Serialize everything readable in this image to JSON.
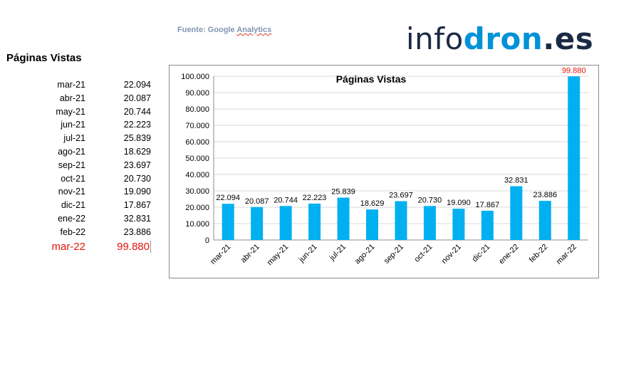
{
  "header": {
    "source_prefix": "Fuente: Google ",
    "source_name": "Analytics",
    "logo_part1": "info",
    "logo_part2": "dron",
    "logo_part3": ".es"
  },
  "table": {
    "title": "Páginas Vistas",
    "rows": [
      {
        "month": "mar-21",
        "value": "22.094"
      },
      {
        "month": "abr-21",
        "value": "20.087"
      },
      {
        "month": "may-21",
        "value": "20.744"
      },
      {
        "month": "jun-21",
        "value": "22.223"
      },
      {
        "month": "jul-21",
        "value": "25.839"
      },
      {
        "month": "ago-21",
        "value": "18.629"
      },
      {
        "month": "sep-21",
        "value": "23.697"
      },
      {
        "month": "oct-21",
        "value": "20.730"
      },
      {
        "month": "nov-21",
        "value": "19.090"
      },
      {
        "month": "dic-21",
        "value": "17.867"
      },
      {
        "month": "ene-22",
        "value": "32.831"
      },
      {
        "month": "feb-22",
        "value": "23.886"
      },
      {
        "month": "mar-22",
        "value": "99.880"
      }
    ]
  },
  "colors": {
    "bar": "#00b0f0",
    "highlight": "#e3150e",
    "grid": "#d9d9d9"
  },
  "chart_data": {
    "type": "bar",
    "title": "Páginas Vistas",
    "categories": [
      "mar-21",
      "abr-21",
      "may-21",
      "jun-21",
      "jul-21",
      "ago-21",
      "sep-21",
      "oct-21",
      "nov-21",
      "dic-21",
      "ene-22",
      "feb-22",
      "mar-22"
    ],
    "values": [
      22094,
      20087,
      20744,
      22223,
      25839,
      18629,
      23697,
      20730,
      19090,
      17867,
      32831,
      23886,
      99880
    ],
    "data_labels": [
      "22.094",
      "20.087",
      "20.744",
      "22.223",
      "25.839",
      "18.629",
      "23.697",
      "20.730",
      "19.090",
      "17.867",
      "32.831",
      "23.886",
      "99.880"
    ],
    "ylim": [
      0,
      100000
    ],
    "ytick_values": [
      0,
      10000,
      20000,
      30000,
      40000,
      50000,
      60000,
      70000,
      80000,
      90000,
      100000
    ],
    "ytick_labels": [
      "0",
      "10.000",
      "20.000",
      "30.000",
      "40.000",
      "50.000",
      "60.000",
      "70.000",
      "80.000",
      "90.000",
      "100.000"
    ],
    "xlabel": "",
    "ylabel": "",
    "grid": true,
    "highlight_last_label": true
  }
}
